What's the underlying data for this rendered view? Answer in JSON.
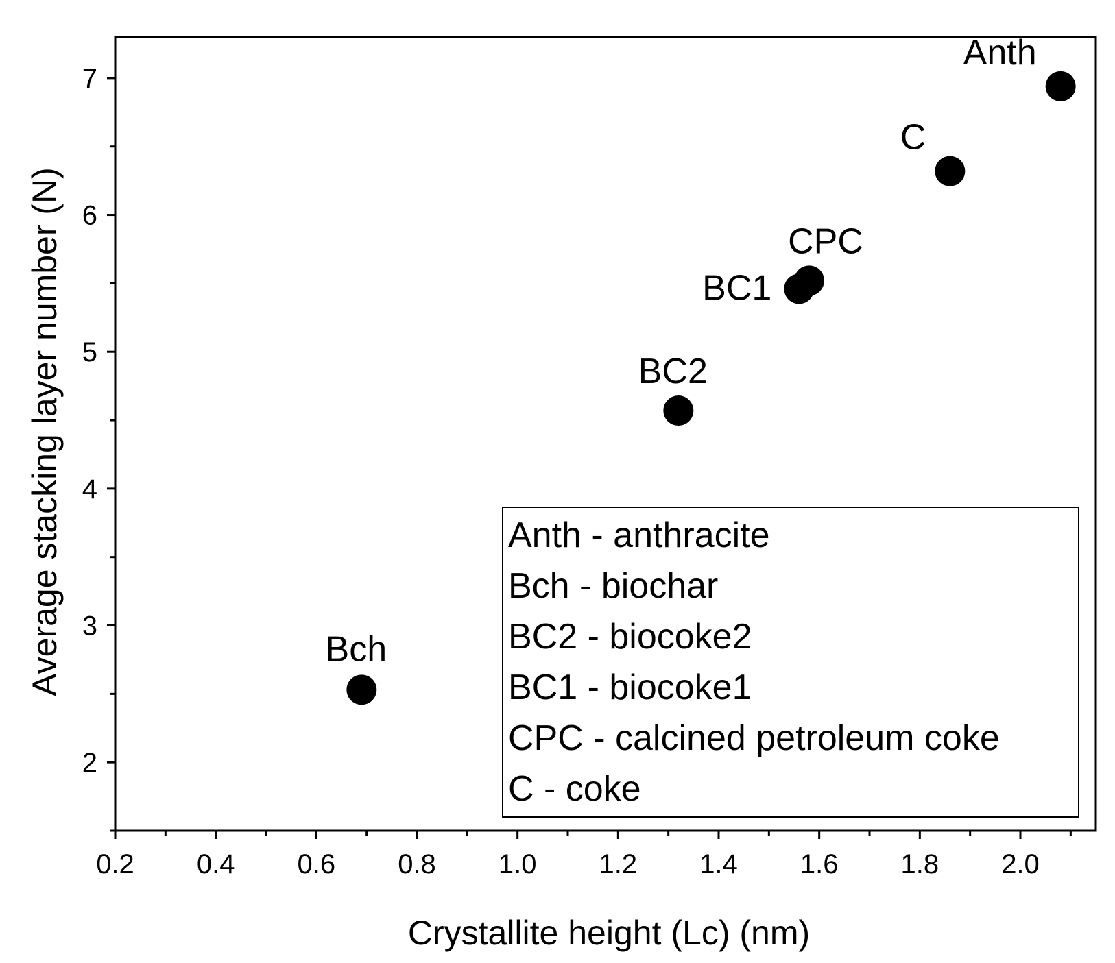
{
  "chart_data": {
    "type": "scatter",
    "title": "",
    "xlabel": "Crystallite height (Lc) (nm)",
    "ylabel": "Average stacking layer number (N)",
    "xlim": [
      0.2,
      2.15
    ],
    "ylim": [
      1.5,
      7.3
    ],
    "x_ticks": [
      0.2,
      0.4,
      0.6,
      0.8,
      1.0,
      1.2,
      1.4,
      1.6,
      1.8,
      2.0
    ],
    "x_tick_labels": [
      "0.2",
      "0.4",
      "0.6",
      "0.8",
      "1.0",
      "1.2",
      "1.4",
      "1.6",
      "1.8",
      "2.0"
    ],
    "y_ticks": [
      2,
      3,
      4,
      5,
      6,
      7
    ],
    "y_tick_labels": [
      "2",
      "3",
      "4",
      "5",
      "6",
      "7"
    ],
    "grid": false,
    "legend_position": "bottom-right",
    "points": [
      {
        "name": "Bch",
        "x": 0.69,
        "y": 2.53,
        "label_anchor": "above"
      },
      {
        "name": "BC2",
        "x": 1.32,
        "y": 4.57,
        "label_anchor": "above"
      },
      {
        "name": "BC1",
        "x": 1.56,
        "y": 5.46,
        "label_anchor": "left"
      },
      {
        "name": "CPC",
        "x": 1.58,
        "y": 5.52,
        "label_anchor": "above"
      },
      {
        "name": "C",
        "x": 1.86,
        "y": 6.32,
        "label_anchor": "above-left"
      },
      {
        "name": "Anth",
        "x": 2.08,
        "y": 6.94,
        "label_anchor": "above-left"
      }
    ],
    "legend": [
      "Anth - anthracite",
      "Bch - biochar",
      "BC2 - biocoke2",
      "BC1 - biocoke1",
      "CPC - calcined petroleum coke",
      "C - coke"
    ],
    "marker_color": "#000000"
  }
}
